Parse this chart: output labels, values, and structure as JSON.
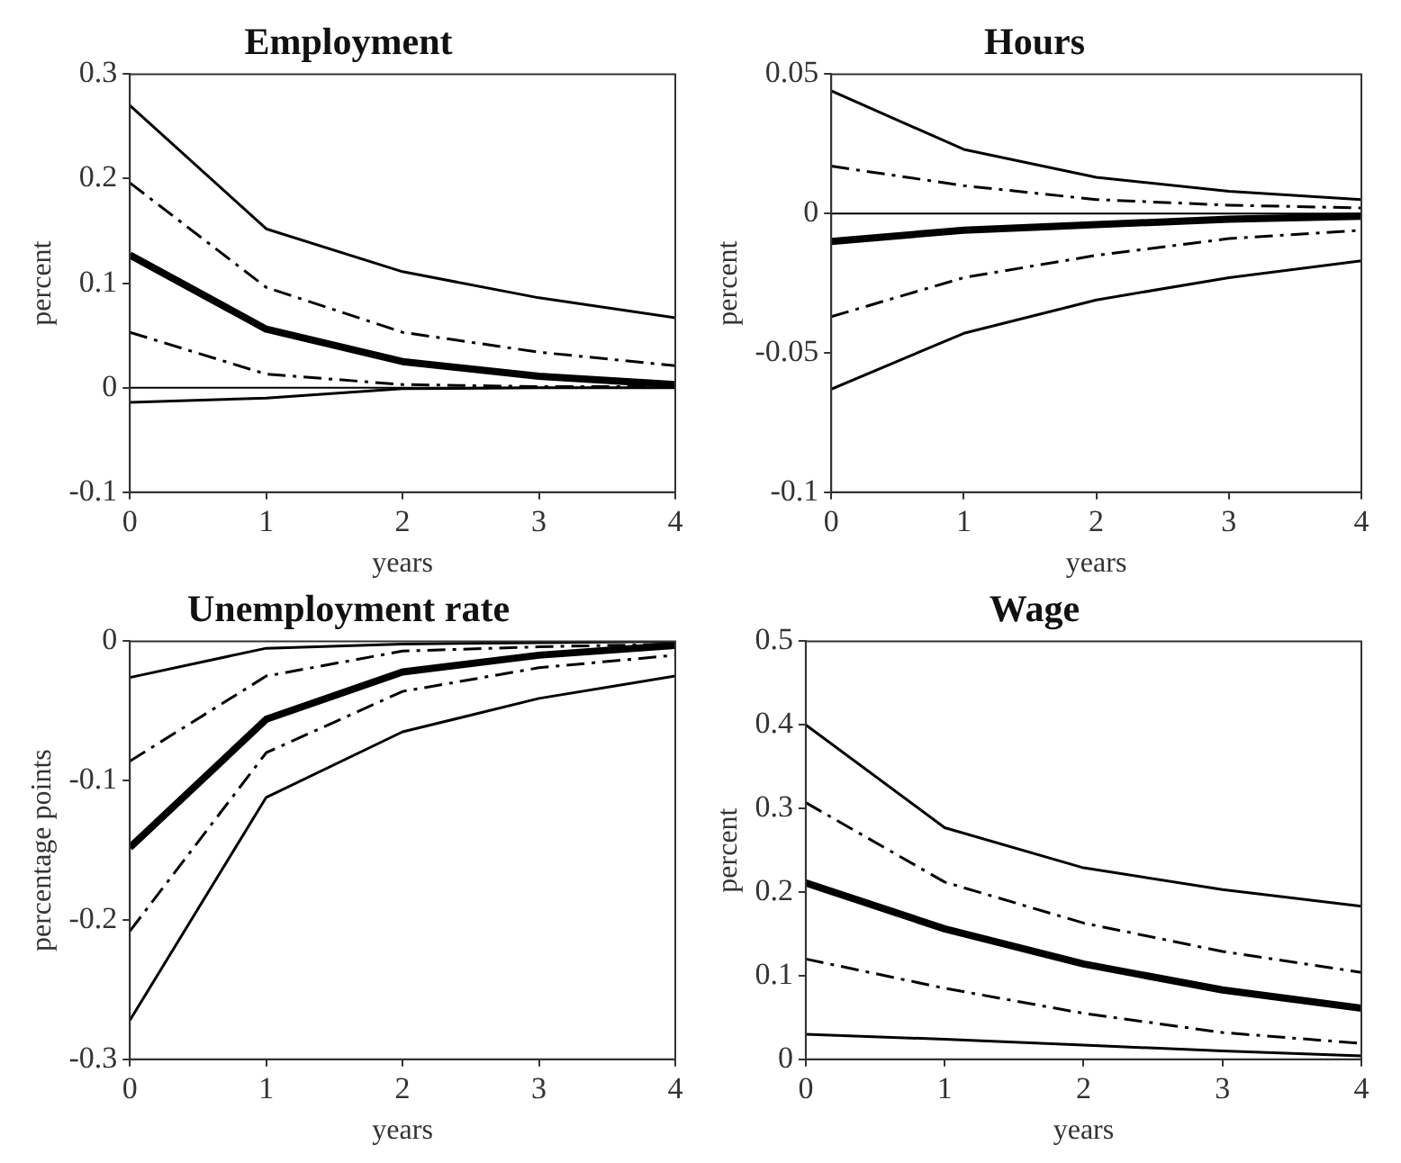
{
  "chart_data": [
    {
      "type": "line",
      "title": "Employment",
      "xlabel": "years",
      "ylabel": "percent",
      "x": [
        0,
        1,
        2,
        3,
        4
      ],
      "xlim": [
        0,
        4
      ],
      "xticks": [
        0,
        1,
        2,
        3,
        4
      ],
      "ylim": [
        -0.1,
        0.3
      ],
      "yticks": [
        -0.1,
        0,
        0.1,
        0.2,
        0.3
      ],
      "grid": false,
      "legend": false,
      "marker": "none",
      "ref_lines": [
        {
          "axis": "y",
          "value": 0,
          "color": "#000000"
        }
      ],
      "series": [
        {
          "color": "#000000",
          "line_style": "solid",
          "values": [
            0.27,
            0.152,
            0.111,
            0.086,
            0.067
          ]
        },
        {
          "color": "#000000",
          "line_style": "dashed",
          "values": [
            0.196,
            0.096,
            0.053,
            0.034,
            0.021
          ]
        },
        {
          "color": "#000000",
          "line_style": "solid",
          "values": [
            0.127,
            0.056,
            0.025,
            0.011,
            0.003
          ]
        },
        {
          "color": "#000000",
          "line_style": "dashed",
          "values": [
            0.053,
            0.013,
            0.003,
            0.001,
            0.001
          ]
        },
        {
          "color": "#000000",
          "line_style": "solid",
          "values": [
            -0.014,
            -0.01,
            -0.001,
            0,
            0
          ]
        }
      ]
    },
    {
      "type": "line",
      "title": "Hours",
      "xlabel": "years",
      "ylabel": "percent",
      "x": [
        0,
        1,
        2,
        3,
        4
      ],
      "xlim": [
        0,
        4
      ],
      "xticks": [
        0,
        1,
        2,
        3,
        4
      ],
      "ylim": [
        -0.1,
        0.05
      ],
      "yticks": [
        -0.1,
        -0.05,
        0,
        0.05
      ],
      "grid": false,
      "legend": false,
      "marker": "none",
      "ref_lines": [
        {
          "axis": "y",
          "value": 0,
          "color": "#000000"
        }
      ],
      "series": [
        {
          "color": "#000000",
          "line_style": "solid",
          "values": [
            0.044,
            0.023,
            0.013,
            0.008,
            0.005
          ]
        },
        {
          "color": "#000000",
          "line_style": "dashed",
          "values": [
            0.017,
            0.01,
            0.005,
            0.003,
            0.002
          ]
        },
        {
          "color": "#000000",
          "line_style": "solid",
          "values": [
            -0.01,
            -0.006,
            -0.004,
            -0.002,
            -0.001
          ]
        },
        {
          "color": "#000000",
          "line_style": "dashed",
          "values": [
            -0.037,
            -0.023,
            -0.015,
            -0.009,
            -0.006
          ]
        },
        {
          "color": "#000000",
          "line_style": "solid",
          "values": [
            -0.063,
            -0.043,
            -0.031,
            -0.023,
            -0.017
          ]
        }
      ]
    },
    {
      "type": "line",
      "title": "Unemployment rate",
      "xlabel": "years",
      "ylabel": "percentage points",
      "x": [
        0,
        1,
        2,
        3,
        4
      ],
      "xlim": [
        0,
        4
      ],
      "xticks": [
        0,
        1,
        2,
        3,
        4
      ],
      "ylim": [
        -0.3,
        0
      ],
      "yticks": [
        -0.3,
        -0.2,
        -0.1,
        0
      ],
      "grid": false,
      "legend": false,
      "marker": "none",
      "series": [
        {
          "color": "#000000",
          "line_style": "solid",
          "values": [
            -0.026,
            -0.005,
            -0.002,
            -0.001,
            0
          ]
        },
        {
          "color": "#000000",
          "line_style": "dashed",
          "values": [
            -0.086,
            -0.025,
            -0.007,
            -0.004,
            -0.002
          ]
        },
        {
          "color": "#000000",
          "line_style": "solid",
          "values": [
            -0.148,
            -0.056,
            -0.022,
            -0.01,
            -0.003
          ]
        },
        {
          "color": "#000000",
          "line_style": "dashed",
          "values": [
            -0.208,
            -0.08,
            -0.036,
            -0.019,
            -0.01
          ]
        },
        {
          "color": "#000000",
          "line_style": "solid",
          "values": [
            -0.272,
            -0.112,
            -0.065,
            -0.041,
            -0.025
          ]
        }
      ]
    },
    {
      "type": "line",
      "title": "Wage",
      "xlabel": "years",
      "ylabel": "percent",
      "x": [
        0,
        1,
        2,
        3,
        4
      ],
      "xlim": [
        0,
        4
      ],
      "xticks": [
        0,
        1,
        2,
        3,
        4
      ],
      "ylim": [
        0,
        0.5
      ],
      "yticks": [
        0,
        0.1,
        0.2,
        0.3,
        0.4,
        0.5
      ],
      "grid": false,
      "legend": false,
      "marker": "none",
      "series": [
        {
          "color": "#000000",
          "line_style": "solid",
          "values": [
            0.4,
            0.277,
            0.229,
            0.203,
            0.183
          ]
        },
        {
          "color": "#000000",
          "line_style": "dashed",
          "values": [
            0.307,
            0.212,
            0.163,
            0.129,
            0.104
          ]
        },
        {
          "color": "#000000",
          "line_style": "solid",
          "values": [
            0.211,
            0.156,
            0.114,
            0.083,
            0.061
          ]
        },
        {
          "color": "#000000",
          "line_style": "dashed",
          "values": [
            0.12,
            0.085,
            0.055,
            0.032,
            0.019
          ]
        },
        {
          "color": "#000000",
          "line_style": "solid",
          "values": [
            0.03,
            0.024,
            0.017,
            0.01,
            0.004
          ]
        }
      ]
    }
  ]
}
